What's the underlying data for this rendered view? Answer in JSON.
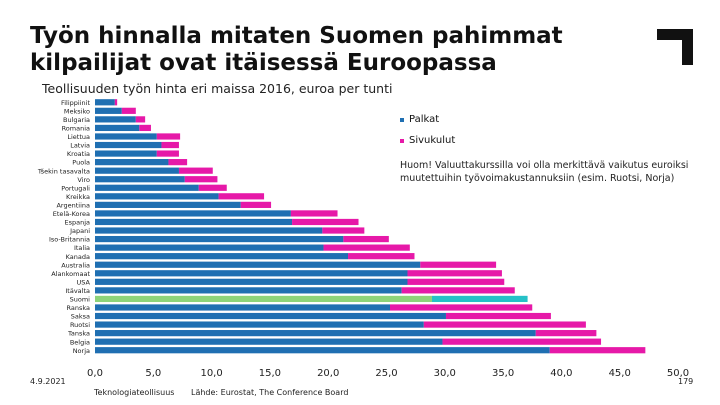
{
  "title": "Työn hinnalla mitaten Suomen pahimmat kilpailijat ovat itäisessä Euroopassa",
  "subtitle": "Teollisuuden työn hinta eri maissa 2016, euroa per tunti",
  "legend": [
    {
      "label": "Palkat",
      "color": "#1f6fb2"
    },
    {
      "label": "Sivukulut",
      "color": "#e619a8"
    }
  ],
  "note": "Huom! Valuuttakurssilla voi olla merkittävä vaikutus euroiksi muutettuihin työvoimakustannuksiin (esim. Ruotsi, Norja)",
  "footer": {
    "date": "4.9.2021",
    "org": "Teknologiateollisuus",
    "source": "Lähde: Eurostat, The Conference Board",
    "page": "179"
  },
  "colors": {
    "wages": "#1f6fb2",
    "social": "#e619a8",
    "finland_wages": "#8dd37a",
    "finland_social": "#25c1c7",
    "black": "#111111"
  },
  "chart_data": {
    "type": "bar",
    "orientation": "horizontal",
    "stacked": true,
    "highlight": "Suomi",
    "categories": [
      "Filippiinit",
      "Meksiko",
      "Bulgaria",
      "Romania",
      "Liettua",
      "Latvia",
      "Kroatia",
      "Puola",
      "Tšekin tasavalta",
      "Viro",
      "Portugali",
      "Kreikka",
      "Argentiina",
      "Etelä-Korea",
      "Espanja",
      "Japani",
      "Iso-Britannia",
      "Italia",
      "Kanada",
      "Australia",
      "Alankomaat",
      "USA",
      "Itävalta",
      "Suomi",
      "Ranska",
      "Saksa",
      "Ruotsi",
      "Tanska",
      "Belgia",
      "Norja"
    ],
    "series": [
      {
        "name": "Palkat",
        "values": [
          1.7,
          2.3,
          3.5,
          3.8,
          5.3,
          5.7,
          5.3,
          6.3,
          7.2,
          7.7,
          8.9,
          10.6,
          12.5,
          16.8,
          16.9,
          19.5,
          21.3,
          19.6,
          21.7,
          27.9,
          26.8,
          26.8,
          26.3,
          28.9,
          25.3,
          30.1,
          28.2,
          37.8,
          29.8,
          39.0
        ]
      },
      {
        "name": "Sivukulut",
        "values": [
          0.2,
          1.2,
          0.8,
          1.0,
          2.0,
          1.5,
          1.9,
          1.6,
          2.9,
          2.8,
          2.4,
          3.9,
          2.6,
          4.0,
          5.7,
          3.6,
          3.9,
          7.4,
          5.7,
          6.5,
          8.1,
          8.3,
          9.7,
          8.2,
          12.2,
          9.0,
          13.9,
          5.2,
          13.6,
          8.2
        ]
      }
    ],
    "xlim": [
      0,
      50
    ],
    "xticks": [
      "0,0",
      "5,0",
      "10,0",
      "15,0",
      "20,0",
      "25,0",
      "30,0",
      "35,0",
      "40,0",
      "45,0",
      "50,0"
    ]
  }
}
